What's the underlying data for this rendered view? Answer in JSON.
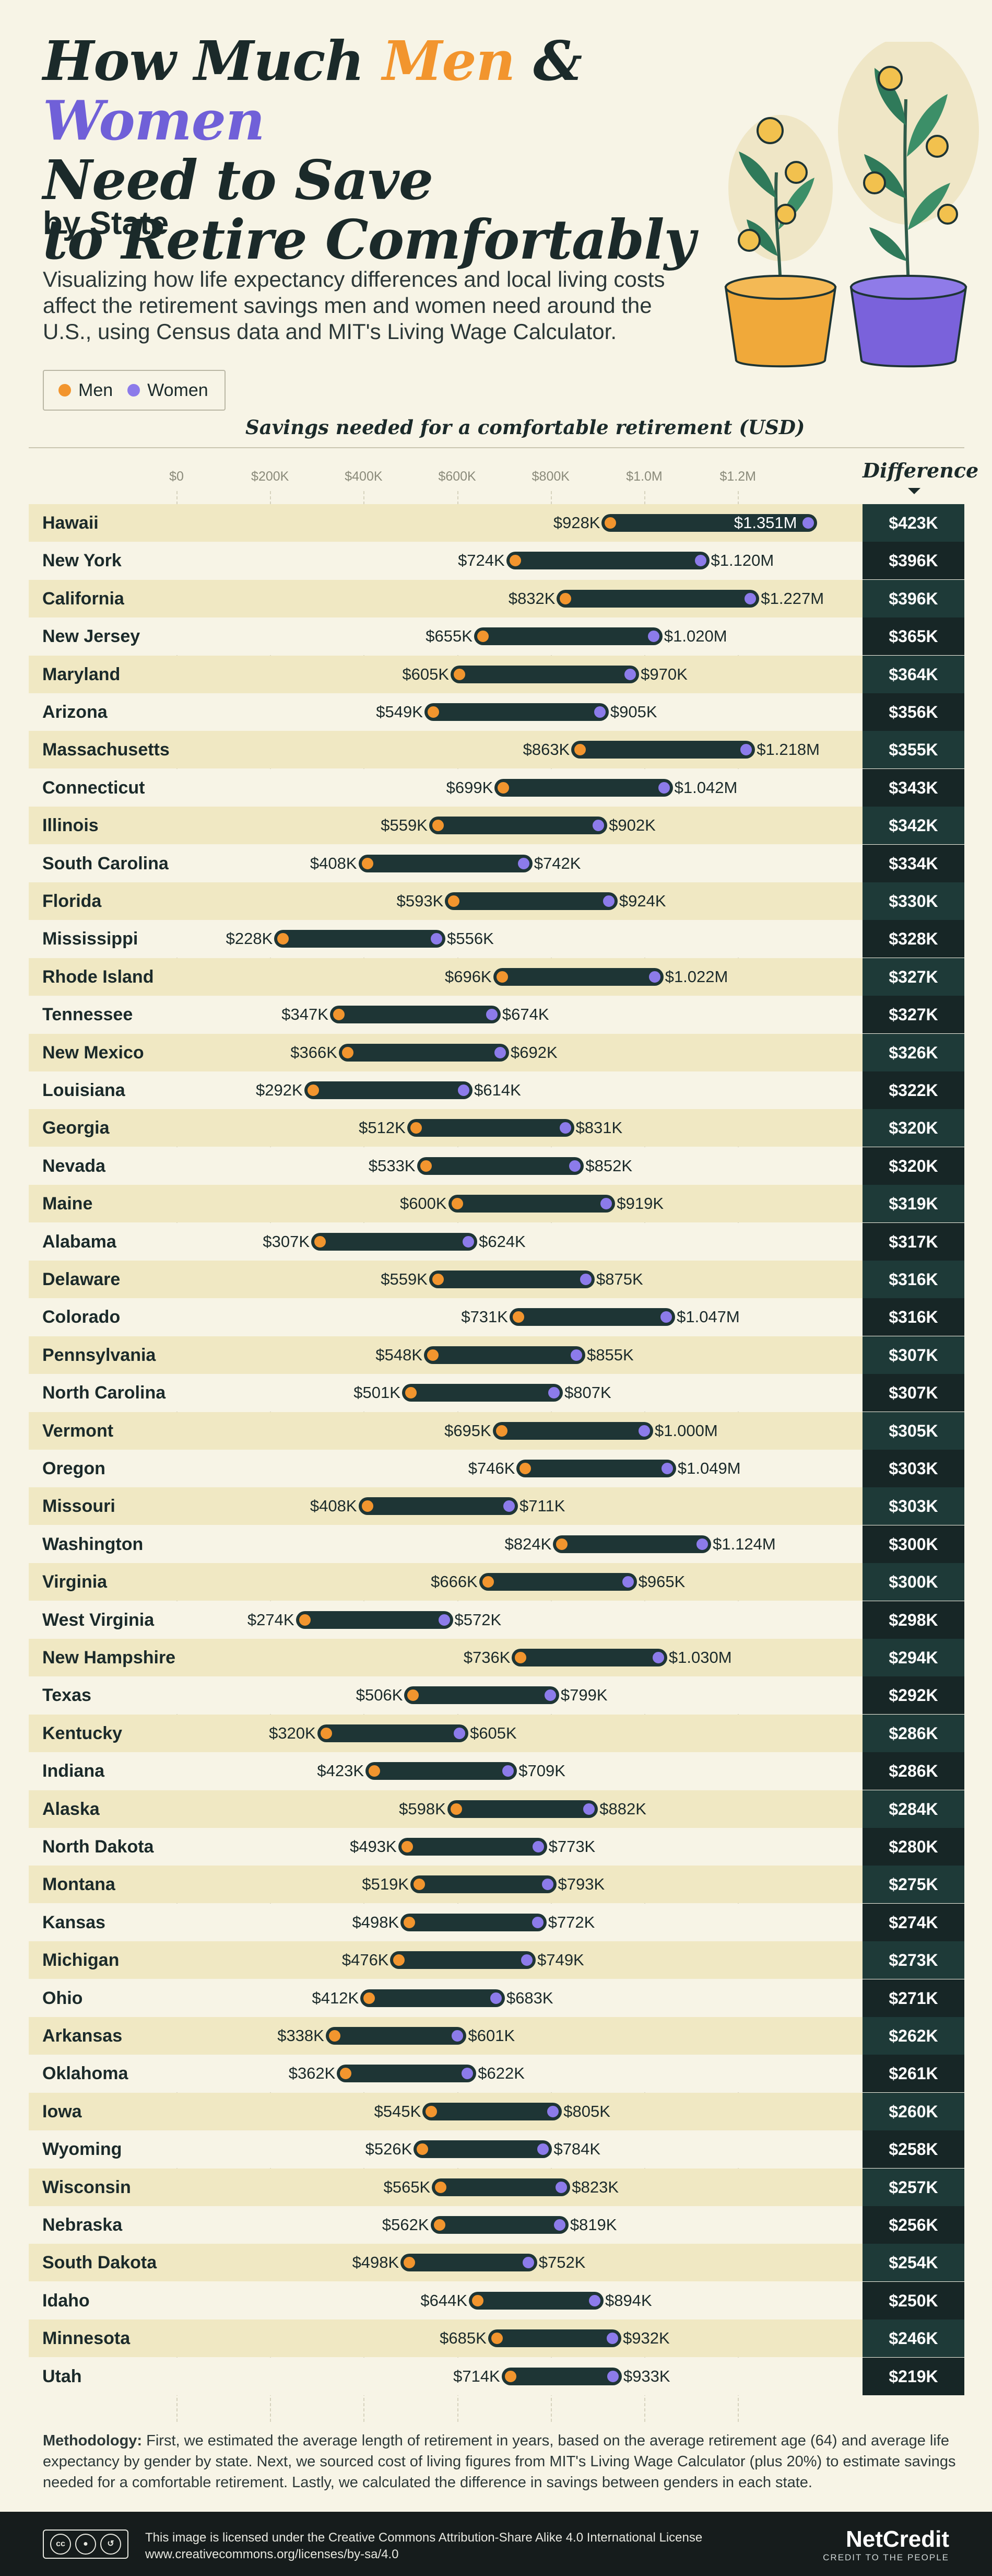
{
  "header": {
    "title_part1": "How Much ",
    "title_men": "Men",
    "title_amp": " & ",
    "title_women": "Women",
    "title_line2": "Need to Save",
    "title_line3": "to Retire Comfortably",
    "subtitle": "by State",
    "intro": "Visualizing how life expectancy differences and local living costs affect the retirement savings men and women need around the U.S., using Census data and MIT's Living Wage Calculator."
  },
  "legend": {
    "men": "Men",
    "women": "Women"
  },
  "colors": {
    "men": "#F2952E",
    "women": "#8C7BEA",
    "bar": "#1e3535",
    "background": "#F7F4E6",
    "stripe": "#F0E8C3"
  },
  "chart_data": {
    "type": "dumbbell",
    "title": "Savings needed for a comfortable retirement (USD)",
    "difference_label": "Difference",
    "x_ticks": [
      "$0",
      "$200K",
      "$400K",
      "$600K",
      "$800K",
      "$1.0M",
      "$1.2M"
    ],
    "xlim": [
      0,
      1351000
    ],
    "series": [
      {
        "name": "Men"
      },
      {
        "name": "Women"
      }
    ],
    "rows": [
      {
        "state": "Hawaii",
        "men": 928,
        "women": 1351,
        "men_label": "$928K",
        "women_label": "$1.351M",
        "difference": "$423K"
      },
      {
        "state": "New York",
        "men": 724,
        "women": 1120,
        "men_label": "$724K",
        "women_label": "$1.120M",
        "difference": "$396K"
      },
      {
        "state": "California",
        "men": 832,
        "women": 1227,
        "men_label": "$832K",
        "women_label": "$1.227M",
        "difference": "$396K"
      },
      {
        "state": "New Jersey",
        "men": 655,
        "women": 1020,
        "men_label": "$655K",
        "women_label": "$1.020M",
        "difference": "$365K"
      },
      {
        "state": "Maryland",
        "men": 605,
        "women": 970,
        "men_label": "$605K",
        "women_label": "$970K",
        "difference": "$364K"
      },
      {
        "state": "Arizona",
        "men": 549,
        "women": 905,
        "men_label": "$549K",
        "women_label": "$905K",
        "difference": "$356K"
      },
      {
        "state": "Massachusetts",
        "men": 863,
        "women": 1218,
        "men_label": "$863K",
        "women_label": "$1.218M",
        "difference": "$355K"
      },
      {
        "state": "Connecticut",
        "men": 699,
        "women": 1042,
        "men_label": "$699K",
        "women_label": "$1.042M",
        "difference": "$343K"
      },
      {
        "state": "Illinois",
        "men": 559,
        "women": 902,
        "men_label": "$559K",
        "women_label": "$902K",
        "difference": "$342K"
      },
      {
        "state": "South Carolina",
        "men": 408,
        "women": 742,
        "men_label": "$408K",
        "women_label": "$742K",
        "difference": "$334K"
      },
      {
        "state": "Florida",
        "men": 593,
        "women": 924,
        "men_label": "$593K",
        "women_label": "$924K",
        "difference": "$330K"
      },
      {
        "state": "Mississippi",
        "men": 228,
        "women": 556,
        "men_label": "$228K",
        "women_label": "$556K",
        "difference": "$328K"
      },
      {
        "state": "Rhode Island",
        "men": 696,
        "women": 1022,
        "men_label": "$696K",
        "women_label": "$1.022M",
        "difference": "$327K"
      },
      {
        "state": "Tennessee",
        "men": 347,
        "women": 674,
        "men_label": "$347K",
        "women_label": "$674K",
        "difference": "$327K"
      },
      {
        "state": "New Mexico",
        "men": 366,
        "women": 692,
        "men_label": "$366K",
        "women_label": "$692K",
        "difference": "$326K"
      },
      {
        "state": "Louisiana",
        "men": 292,
        "women": 614,
        "men_label": "$292K",
        "women_label": "$614K",
        "difference": "$322K"
      },
      {
        "state": "Georgia",
        "men": 512,
        "women": 831,
        "men_label": "$512K",
        "women_label": "$831K",
        "difference": "$320K"
      },
      {
        "state": "Nevada",
        "men": 533,
        "women": 852,
        "men_label": "$533K",
        "women_label": "$852K",
        "difference": "$320K"
      },
      {
        "state": "Maine",
        "men": 600,
        "women": 919,
        "men_label": "$600K",
        "women_label": "$919K",
        "difference": "$319K"
      },
      {
        "state": "Alabama",
        "men": 307,
        "women": 624,
        "men_label": "$307K",
        "women_label": "$624K",
        "difference": "$317K"
      },
      {
        "state": "Delaware",
        "men": 559,
        "women": 875,
        "men_label": "$559K",
        "women_label": "$875K",
        "difference": "$316K"
      },
      {
        "state": "Colorado",
        "men": 731,
        "women": 1047,
        "men_label": "$731K",
        "women_label": "$1.047M",
        "difference": "$316K"
      },
      {
        "state": "Pennsylvania",
        "men": 548,
        "women": 855,
        "men_label": "$548K",
        "women_label": "$855K",
        "difference": "$307K"
      },
      {
        "state": "North Carolina",
        "men": 501,
        "women": 807,
        "men_label": "$501K",
        "women_label": "$807K",
        "difference": "$307K"
      },
      {
        "state": "Vermont",
        "men": 695,
        "women": 1000,
        "men_label": "$695K",
        "women_label": "$1.000M",
        "difference": "$305K"
      },
      {
        "state": "Oregon",
        "men": 746,
        "women": 1049,
        "men_label": "$746K",
        "women_label": "$1.049M",
        "difference": "$303K"
      },
      {
        "state": "Missouri",
        "men": 408,
        "women": 711,
        "men_label": "$408K",
        "women_label": "$711K",
        "difference": "$303K"
      },
      {
        "state": "Washington",
        "men": 824,
        "women": 1124,
        "men_label": "$824K",
        "women_label": "$1.124M",
        "difference": "$300K"
      },
      {
        "state": "Virginia",
        "men": 666,
        "women": 965,
        "men_label": "$666K",
        "women_label": "$965K",
        "difference": "$300K"
      },
      {
        "state": "West Virginia",
        "men": 274,
        "women": 572,
        "men_label": "$274K",
        "women_label": "$572K",
        "difference": "$298K"
      },
      {
        "state": "New Hampshire",
        "men": 736,
        "women": 1030,
        "men_label": "$736K",
        "women_label": "$1.030M",
        "difference": "$294K"
      },
      {
        "state": "Texas",
        "men": 506,
        "women": 799,
        "men_label": "$506K",
        "women_label": "$799K",
        "difference": "$292K"
      },
      {
        "state": "Kentucky",
        "men": 320,
        "women": 605,
        "men_label": "$320K",
        "women_label": "$605K",
        "difference": "$286K"
      },
      {
        "state": "Indiana",
        "men": 423,
        "women": 709,
        "men_label": "$423K",
        "women_label": "$709K",
        "difference": "$286K"
      },
      {
        "state": "Alaska",
        "men": 598,
        "women": 882,
        "men_label": "$598K",
        "women_label": "$882K",
        "difference": "$284K"
      },
      {
        "state": "North Dakota",
        "men": 493,
        "women": 773,
        "men_label": "$493K",
        "women_label": "$773K",
        "difference": "$280K"
      },
      {
        "state": "Montana",
        "men": 519,
        "women": 793,
        "men_label": "$519K",
        "women_label": "$793K",
        "difference": "$275K"
      },
      {
        "state": "Kansas",
        "men": 498,
        "women": 772,
        "men_label": "$498K",
        "women_label": "$772K",
        "difference": "$274K"
      },
      {
        "state": "Michigan",
        "men": 476,
        "women": 749,
        "men_label": "$476K",
        "women_label": "$749K",
        "difference": "$273K"
      },
      {
        "state": "Ohio",
        "men": 412,
        "women": 683,
        "men_label": "$412K",
        "women_label": "$683K",
        "difference": "$271K"
      },
      {
        "state": "Arkansas",
        "men": 338,
        "women": 601,
        "men_label": "$338K",
        "women_label": "$601K",
        "difference": "$262K"
      },
      {
        "state": "Oklahoma",
        "men": 362,
        "women": 622,
        "men_label": "$362K",
        "women_label": "$622K",
        "difference": "$261K"
      },
      {
        "state": "Iowa",
        "men": 545,
        "women": 805,
        "men_label": "$545K",
        "women_label": "$805K",
        "difference": "$260K"
      },
      {
        "state": "Wyoming",
        "men": 526,
        "women": 784,
        "men_label": "$526K",
        "women_label": "$784K",
        "difference": "$258K"
      },
      {
        "state": "Wisconsin",
        "men": 565,
        "women": 823,
        "men_label": "$565K",
        "women_label": "$823K",
        "difference": "$257K"
      },
      {
        "state": "Nebraska",
        "men": 562,
        "women": 819,
        "men_label": "$562K",
        "women_label": "$819K",
        "difference": "$256K"
      },
      {
        "state": "South Dakota",
        "men": 498,
        "women": 752,
        "men_label": "$498K",
        "women_label": "$752K",
        "difference": "$254K"
      },
      {
        "state": "Idaho",
        "men": 644,
        "women": 894,
        "men_label": "$644K",
        "women_label": "$894K",
        "difference": "$250K"
      },
      {
        "state": "Minnesota",
        "men": 685,
        "women": 932,
        "men_label": "$685K",
        "women_label": "$932K",
        "difference": "$246K"
      },
      {
        "state": "Utah",
        "men": 714,
        "women": 933,
        "men_label": "$714K",
        "women_label": "$933K",
        "difference": "$219K"
      }
    ]
  },
  "methodology": {
    "label": "Methodology:",
    "text": " First, we estimated the average length of retirement in years, based on the average retirement age (64) and average life expectancy by gender by state. Next, we sourced cost of living figures from MIT's Living Wage Calculator (plus 20%) to estimate savings needed for a comfortable retirement. Lastly, we calculated the difference in savings between genders in each state."
  },
  "footer": {
    "cc_label": "cc",
    "license_line1": "This image is licensed under the Creative Commons Attribution-Share Alike 4.0 International License",
    "license_line2": "www.creativecommons.org/licenses/by-sa/4.0",
    "brand": "NetCredit",
    "tagline": "CREDIT TO THE PEOPLE"
  }
}
